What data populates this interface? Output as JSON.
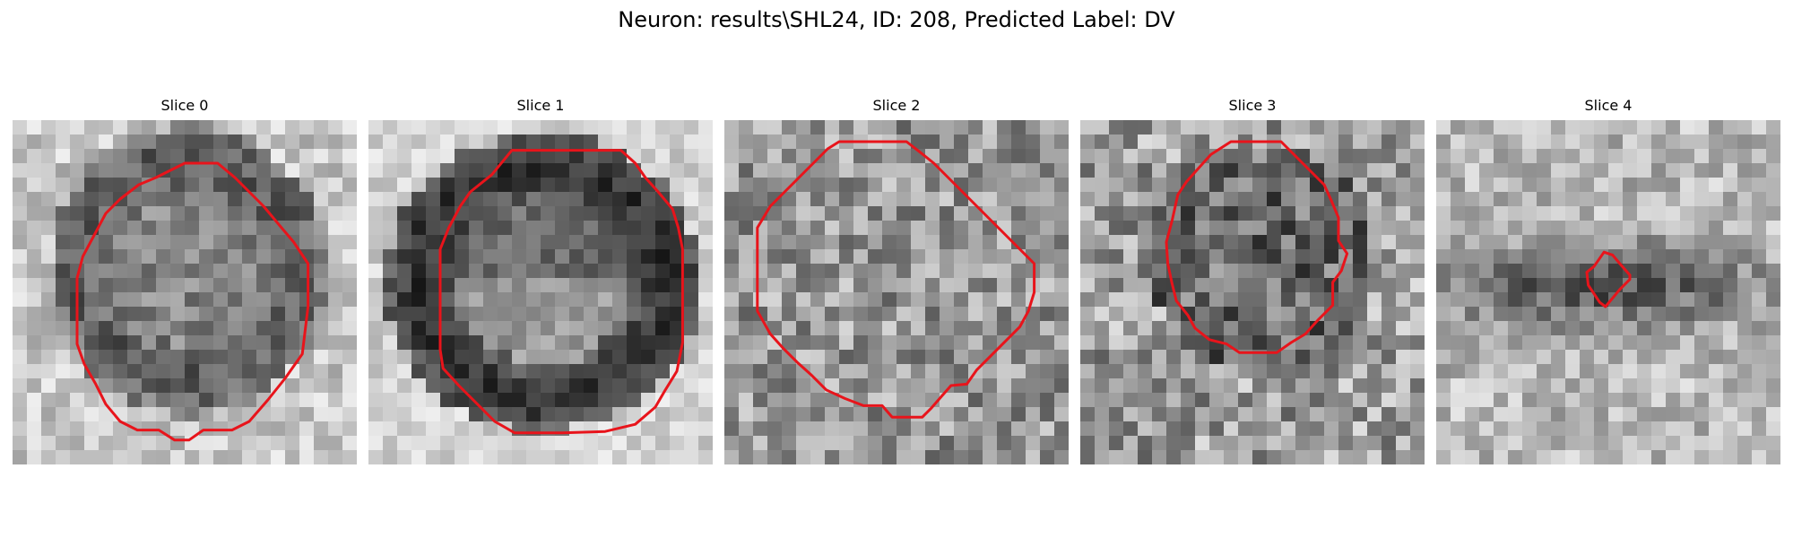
{
  "figure": {
    "title": "Neuron: results\\SHL24, ID: 208, Predicted Label: DV",
    "contour_color": "#e8141b",
    "slices": [
      {
        "title": "Slice 0"
      },
      {
        "title": "Slice 1"
      },
      {
        "title": "Slice 2"
      },
      {
        "title": "Slice 3"
      },
      {
        "title": "Slice 4"
      }
    ]
  }
}
